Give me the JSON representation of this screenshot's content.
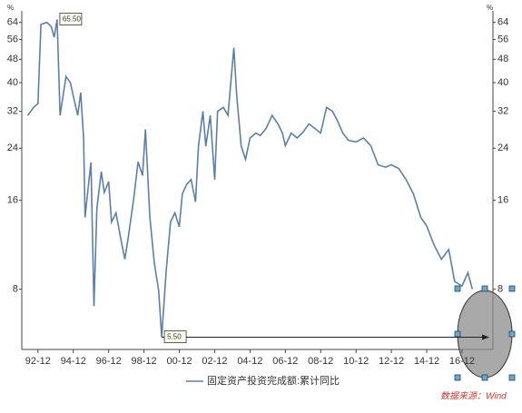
{
  "chart_data": {
    "type": "line",
    "y_unit": "%",
    "log_scale": true,
    "legend_position": "bottom",
    "ylim": [
      5,
      70
    ],
    "yticks": [
      8,
      16,
      24,
      32,
      40,
      48,
      56,
      64
    ],
    "xlim": [
      "1992-01",
      "2018-09"
    ],
    "xticks": [
      {
        "value": "1992-12",
        "label": "92-12"
      },
      {
        "value": "1994-12",
        "label": "94-12"
      },
      {
        "value": "1996-12",
        "label": "96-12"
      },
      {
        "value": "1998-12",
        "label": "98-12"
      },
      {
        "value": "2000-12",
        "label": "00-12"
      },
      {
        "value": "2002-12",
        "label": "02-12"
      },
      {
        "value": "2004-12",
        "label": "04-12"
      },
      {
        "value": "2006-12",
        "label": "06-12"
      },
      {
        "value": "2008-12",
        "label": "08-12"
      },
      {
        "value": "2010-12",
        "label": "10-12"
      },
      {
        "value": "2012-12",
        "label": "12-12"
      },
      {
        "value": "2014-12",
        "label": "14-12"
      },
      {
        "value": "2016-12",
        "label": "16-12"
      }
    ],
    "x": [
      "1992-05",
      "1992-09",
      "1992-12",
      "1993-02",
      "1993-06",
      "1993-09",
      "1993-11",
      "1994-01",
      "1994-03",
      "1994-05",
      "1994-07",
      "1994-10",
      "1994-12",
      "1995-03",
      "1995-05",
      "1995-07",
      "1995-08",
      "1995-10",
      "1995-12",
      "1996-02",
      "1996-04",
      "1996-07",
      "1996-09",
      "1996-12",
      "1997-02",
      "1997-05",
      "1997-08",
      "1997-11",
      "1998-01",
      "1998-05",
      "1998-08",
      "1998-11",
      "1999-01",
      "1999-04",
      "1999-07",
      "1999-10",
      "1999-12",
      "2000-03",
      "2000-06",
      "2000-09",
      "2000-12",
      "2001-02",
      "2001-05",
      "2001-08",
      "2001-11",
      "2002-01",
      "2002-04",
      "2002-06",
      "2002-09",
      "2002-12",
      "2003-02",
      "2003-06",
      "2003-09",
      "2004-01",
      "2004-03",
      "2004-06",
      "2004-09",
      "2004-12",
      "2005-04",
      "2005-07",
      "2005-11",
      "2006-03",
      "2006-07",
      "2006-10",
      "2006-12",
      "2007-04",
      "2007-08",
      "2007-12",
      "2008-04",
      "2008-08",
      "2008-12",
      "2009-04",
      "2009-08",
      "2009-11",
      "2010-03",
      "2010-07",
      "2010-12",
      "2011-05",
      "2011-10",
      "2012-03",
      "2012-08",
      "2012-12",
      "2013-05",
      "2013-10",
      "2014-03",
      "2014-08",
      "2014-12",
      "2015-05",
      "2015-10",
      "2016-03",
      "2016-07",
      "2016-12",
      "2017-04",
      "2017-07"
    ],
    "series": [
      {
        "name": "固定资产投资完成额:累计同比",
        "color": "#5b7fa8",
        "values": [
          31,
          33,
          34,
          63,
          64,
          62,
          57,
          65.5,
          31,
          36,
          42,
          40,
          36,
          31,
          37,
          26,
          14,
          17.5,
          21.5,
          7,
          15,
          20,
          17,
          18.5,
          13.5,
          14.5,
          12,
          10.1,
          11.7,
          16.2,
          21.6,
          19.4,
          27.8,
          14,
          9.8,
          7.9,
          5.5,
          9.1,
          13.5,
          14.5,
          13,
          16.8,
          18.1,
          18.8,
          15.8,
          24.4,
          32,
          24.4,
          31,
          18.8,
          32,
          33,
          31,
          52.5,
          36,
          24.4,
          22,
          26,
          27,
          26.5,
          28,
          31,
          29,
          27,
          24.5,
          27,
          26,
          27.2,
          29,
          28,
          27,
          33,
          32,
          30,
          27,
          25.5,
          25.2,
          26,
          24.5,
          21.1,
          20.7,
          21.1,
          20.5,
          18.8,
          16.8,
          14,
          13.1,
          11.3,
          10.1,
          10.9,
          8.5,
          8.2,
          9.1,
          8
        ]
      }
    ],
    "annotations": [
      {
        "label": "65.50",
        "x": "1994-01",
        "value": 65.5
      },
      {
        "label": "5.50",
        "x": "1999-12",
        "value": 5.5
      }
    ],
    "source": "数据来源：Wind"
  }
}
